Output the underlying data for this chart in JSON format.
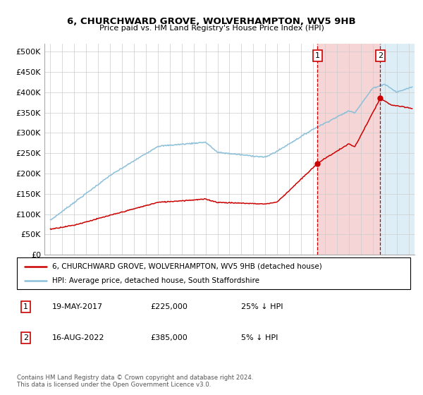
{
  "title": "6, CHURCHWARD GROVE, WOLVERHAMPTON, WV5 9HB",
  "subtitle": "Price paid vs. HM Land Registry's House Price Index (HPI)",
  "ylabel_ticks": [
    "£0",
    "£50K",
    "£100K",
    "£150K",
    "£200K",
    "£250K",
    "£300K",
    "£350K",
    "£400K",
    "£450K",
    "£500K"
  ],
  "ytick_values": [
    0,
    50000,
    100000,
    150000,
    200000,
    250000,
    300000,
    350000,
    400000,
    450000,
    500000
  ],
  "ylim": [
    0,
    520000
  ],
  "xlim_start": 1994.5,
  "xlim_end": 2025.5,
  "hpi_color": "#8bbfda",
  "price_color": "#cc0000",
  "vline_color": "#cc0000",
  "transaction1_year": 2017.38,
  "transaction1_price": 225000,
  "transaction2_year": 2022.62,
  "transaction2_price": 385000,
  "legend_line1": "6, CHURCHWARD GROVE, WOLVERHAMPTON, WV5 9HB (detached house)",
  "legend_line2": "HPI: Average price, detached house, South Staffordshire",
  "table_row1": [
    "1",
    "19-MAY-2017",
    "£225,000",
    "25% ↓ HPI"
  ],
  "table_row2": [
    "2",
    "16-AUG-2022",
    "£385,000",
    "5% ↓ HPI"
  ],
  "footnote": "Contains HM Land Registry data © Crown copyright and database right 2024.\nThis data is licensed under the Open Government Licence v3.0.",
  "grid_color": "#cccccc",
  "span1_color": "#f5d5d5",
  "span2_color": "#ddeef7"
}
